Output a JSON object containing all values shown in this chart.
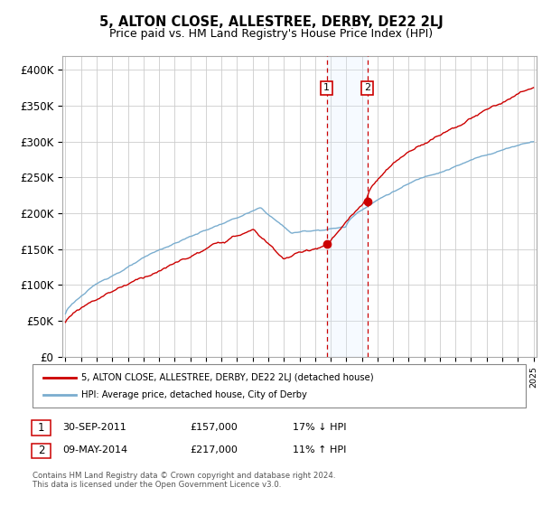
{
  "title": "5, ALTON CLOSE, ALLESTREE, DERBY, DE22 2LJ",
  "subtitle": "Price paid vs. HM Land Registry's House Price Index (HPI)",
  "ylim": [
    0,
    420000
  ],
  "yticks": [
    0,
    50000,
    100000,
    150000,
    200000,
    250000,
    300000,
    350000,
    400000
  ],
  "ytick_labels": [
    "£0",
    "£50K",
    "£100K",
    "£150K",
    "£200K",
    "£250K",
    "£300K",
    "£350K",
    "£400K"
  ],
  "sale1_year": 2011.75,
  "sale1_price": 157000,
  "sale2_year": 2014.36,
  "sale2_price": 217000,
  "red_color": "#cc0000",
  "blue_color": "#7aadcf",
  "grid_color": "#cccccc",
  "span_color": "#ddeeff",
  "legend_line1": "5, ALTON CLOSE, ALLESTREE, DERBY, DE22 2LJ (detached house)",
  "legend_line2": "HPI: Average price, detached house, City of Derby",
  "table_row1": [
    "1",
    "30-SEP-2011",
    "£157,000",
    "17% ↓ HPI"
  ],
  "table_row2": [
    "2",
    "09-MAY-2014",
    "£217,000",
    "11% ↑ HPI"
  ],
  "footer": "Contains HM Land Registry data © Crown copyright and database right 2024.\nThis data is licensed under the Open Government Licence v3.0.",
  "xmin": 1995,
  "xmax": 2025
}
